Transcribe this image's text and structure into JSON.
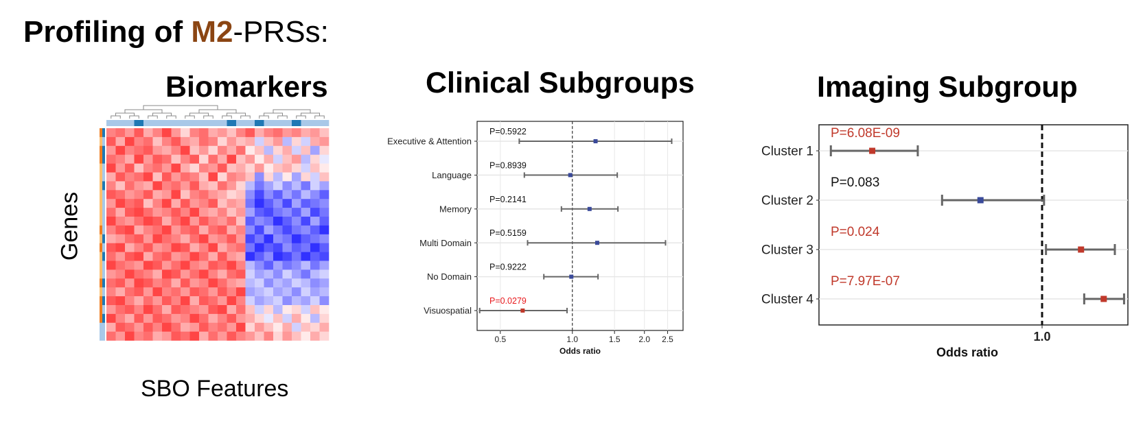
{
  "title": {
    "prefix": "Profiling of ",
    "highlight": "M2",
    "suffix": "-PRSs:",
    "highlight_color": "#8b4513"
  },
  "panels": {
    "biomarkers": {
      "title": "Biomarkers",
      "ylabel": "Genes",
      "xlabel": "SBO Features"
    },
    "clinical": {
      "title": "Clinical Subgroups"
    },
    "imaging": {
      "title": "Imaging Subgroup"
    }
  },
  "colors": {
    "significant": "#c0392b",
    "significant_text": "#e8181c",
    "nonsignificant": "#3a4a9a",
    "whisker": "#666666"
  },
  "chart_data": [
    {
      "type": "heatmap",
      "title": "Biomarkers",
      "xlabel": "SBO Features",
      "ylabel": "Genes",
      "rows": 24,
      "cols": 24,
      "color_scale": {
        "low": "#1a1aff",
        "mid": "#ffffff",
        "high": "#ff3030"
      },
      "col_annotation": [
        0,
        0,
        0,
        1,
        0,
        0,
        0,
        0,
        0,
        0,
        0,
        0,
        0,
        1,
        0,
        0,
        1,
        0,
        0,
        0,
        1,
        0,
        0,
        0
      ],
      "row_annotation": [
        1,
        0,
        1,
        1,
        0,
        0,
        1,
        0,
        0,
        0,
        0,
        0,
        1,
        0,
        1,
        0,
        0,
        1,
        0,
        1,
        0,
        1,
        0,
        0
      ],
      "annotation_colors": {
        "0": "#a8c8e8",
        "1": "#1f78b4"
      },
      "row_side_colors": [
        "#f07c1e",
        "#fdbf6f",
        "#f07c1e",
        "#f07c1e",
        "#fdbf6f",
        "#fdbf6f",
        "#fdbf6f",
        "#fdbf6f",
        "#fdbf6f",
        "#fdbf6f",
        "#fdbf6f",
        "#f07c1e",
        "#fdbf6f",
        "#f07c1e",
        "#fdbf6f",
        "#fdbf6f",
        "#fdbf6f",
        "#f07c1e",
        "#fdbf6f",
        "#f07c1e",
        "#f07c1e",
        "#f07c1e",
        "#a8c8e8",
        "#a8c8e8"
      ],
      "values": [
        [
          0.6,
          0.7,
          0.5,
          0.8,
          0.4,
          0.6,
          0.9,
          0.5,
          0.2,
          0.6,
          0.7,
          0.4,
          0.5,
          0.3,
          0.6,
          0.8,
          0.4,
          0.6,
          0.7,
          0.5,
          0.6,
          0.4,
          0.5,
          0.3
        ],
        [
          0.8,
          0.4,
          0.9,
          0.6,
          0.7,
          0.3,
          0.6,
          0.8,
          0.5,
          0.4,
          0.7,
          0.6,
          0.2,
          0.5,
          0.3,
          0.4,
          -0.2,
          0.3,
          0.5,
          -0.3,
          0.2,
          -0.2,
          0.4,
          0.5
        ],
        [
          0.5,
          0.9,
          0.6,
          0.7,
          0.8,
          0.5,
          0.4,
          0.6,
          0.9,
          0.3,
          0.5,
          0.2,
          0.6,
          0.4,
          0.7,
          0.1,
          0.3,
          -0.3,
          0.2,
          0.4,
          -0.2,
          0.3,
          -0.4,
          0.2
        ],
        [
          0.7,
          0.6,
          0.4,
          0.9,
          0.5,
          0.8,
          0.7,
          0.3,
          0.6,
          0.8,
          0.2,
          0.7,
          0.4,
          0.9,
          0.3,
          0.5,
          0.1,
          0.4,
          -0.2,
          0.3,
          0.5,
          -0.3,
          0.2,
          -0.1
        ],
        [
          0.9,
          0.5,
          0.8,
          0.3,
          0.6,
          0.7,
          0.5,
          0.9,
          0.4,
          0.2,
          0.6,
          0.5,
          0.8,
          0.3,
          0.4,
          0.2,
          0.5,
          0.1,
          0.3,
          0.4,
          0.2,
          -0.2,
          0.3,
          0.1
        ],
        [
          0.4,
          0.8,
          0.6,
          0.7,
          0.9,
          0.3,
          0.8,
          0.5,
          0.7,
          0.6,
          0.3,
          0.9,
          0.2,
          0.6,
          0.5,
          0.3,
          -0.5,
          0.2,
          -0.3,
          0.1,
          -0.4,
          0.2,
          -0.2,
          0.3
        ],
        [
          0.6,
          0.3,
          0.7,
          0.5,
          0.4,
          0.9,
          0.6,
          0.7,
          0.5,
          0.8,
          0.4,
          0.3,
          0.7,
          0.5,
          0.2,
          -0.3,
          -0.6,
          -0.4,
          -0.2,
          -0.5,
          -0.3,
          -0.6,
          -0.2,
          -0.4
        ],
        [
          0.8,
          0.7,
          0.5,
          0.6,
          0.8,
          0.4,
          0.5,
          0.9,
          0.3,
          0.6,
          0.7,
          0.5,
          0.4,
          0.2,
          0.3,
          -0.5,
          -0.8,
          -0.5,
          -0.7,
          -0.4,
          -0.6,
          -0.3,
          -0.5,
          -0.7
        ],
        [
          0.5,
          0.9,
          0.7,
          0.8,
          0.3,
          0.6,
          0.9,
          0.4,
          0.8,
          0.5,
          0.6,
          0.8,
          0.3,
          0.5,
          0.4,
          -0.6,
          -0.9,
          -0.7,
          -0.5,
          -0.8,
          -0.4,
          -0.7,
          -0.6,
          -0.5
        ],
        [
          0.7,
          0.4,
          0.8,
          0.9,
          0.7,
          0.5,
          0.6,
          0.8,
          0.6,
          0.9,
          0.5,
          0.4,
          0.6,
          0.3,
          0.5,
          -0.4,
          -0.7,
          -0.8,
          -0.6,
          -0.5,
          -0.7,
          -0.4,
          -0.8,
          -0.6
        ],
        [
          0.9,
          0.6,
          0.5,
          0.7,
          0.9,
          0.8,
          0.4,
          0.7,
          0.9,
          0.5,
          0.8,
          0.6,
          0.5,
          0.7,
          0.3,
          -0.7,
          -0.5,
          -0.6,
          -0.9,
          -0.7,
          -0.5,
          -0.8,
          -0.4,
          -0.7
        ],
        [
          0.6,
          0.8,
          0.9,
          0.4,
          0.6,
          0.7,
          0.9,
          0.5,
          0.7,
          0.8,
          0.4,
          0.7,
          0.8,
          0.4,
          0.6,
          -0.5,
          -0.8,
          -0.4,
          -0.6,
          -0.8,
          -0.6,
          -0.5,
          -0.7,
          -0.9
        ],
        [
          0.4,
          0.5,
          0.7,
          0.8,
          0.5,
          0.9,
          0.7,
          0.6,
          0.4,
          0.7,
          0.9,
          0.5,
          0.6,
          0.8,
          0.5,
          -0.8,
          -0.6,
          -0.9,
          -0.5,
          -0.6,
          -0.9,
          -0.7,
          -0.6,
          -0.5
        ],
        [
          0.8,
          0.9,
          0.4,
          0.6,
          0.8,
          0.5,
          0.6,
          0.9,
          0.8,
          0.4,
          0.6,
          0.9,
          0.4,
          0.6,
          0.7,
          -0.6,
          -0.9,
          -0.7,
          -0.8,
          -0.5,
          -0.7,
          -0.6,
          -0.9,
          -0.7
        ],
        [
          0.7,
          0.5,
          0.8,
          0.9,
          0.4,
          0.7,
          0.8,
          0.5,
          0.6,
          0.9,
          0.7,
          0.4,
          0.8,
          0.5,
          0.4,
          -0.9,
          -0.7,
          -0.5,
          -0.9,
          -0.8,
          -0.6,
          -0.9,
          -0.7,
          -0.8
        ],
        [
          0.9,
          0.7,
          0.6,
          0.5,
          0.9,
          0.8,
          0.5,
          0.7,
          0.9,
          0.6,
          0.5,
          0.8,
          0.7,
          0.9,
          0.6,
          -0.3,
          -0.5,
          -0.7,
          -0.4,
          -0.6,
          -0.5,
          -0.3,
          -0.6,
          -0.4
        ],
        [
          0.5,
          0.6,
          0.9,
          0.7,
          0.6,
          0.4,
          0.9,
          0.8,
          0.5,
          0.7,
          0.9,
          0.6,
          0.4,
          0.7,
          0.8,
          -0.2,
          -0.4,
          -0.3,
          -0.5,
          -0.2,
          -0.4,
          -0.6,
          -0.3,
          -0.2
        ],
        [
          0.7,
          0.8,
          0.5,
          0.9,
          0.8,
          0.6,
          0.7,
          0.4,
          0.8,
          0.5,
          0.6,
          0.9,
          0.7,
          0.5,
          0.4,
          -0.3,
          -0.2,
          -0.5,
          -0.3,
          -0.4,
          -0.2,
          -0.3,
          -0.5,
          -0.4
        ],
        [
          0.6,
          0.4,
          0.7,
          0.8,
          0.5,
          0.9,
          0.6,
          0.7,
          0.5,
          0.8,
          0.7,
          0.5,
          0.8,
          0.6,
          0.9,
          -0.4,
          -0.3,
          -0.2,
          -0.4,
          -0.3,
          -0.5,
          -0.2,
          -0.4,
          -0.3
        ],
        [
          0.8,
          0.9,
          0.6,
          0.4,
          0.7,
          0.5,
          0.8,
          0.6,
          0.9,
          0.4,
          0.8,
          0.7,
          0.5,
          0.9,
          0.6,
          -0.2,
          -0.4,
          -0.3,
          -0.2,
          -0.5,
          -0.3,
          -0.4,
          -0.2,
          -0.5
        ],
        [
          0.5,
          0.7,
          0.8,
          0.6,
          0.9,
          0.7,
          0.4,
          0.8,
          0.7,
          0.6,
          0.5,
          0.8,
          0.9,
          0.4,
          0.7,
          0.3,
          -0.2,
          0.2,
          -0.3,
          0.1,
          0.2,
          -0.2,
          0.3,
          0.1
        ],
        [
          0.9,
          0.6,
          0.4,
          0.8,
          0.5,
          0.8,
          0.7,
          0.5,
          0.6,
          0.9,
          0.7,
          0.4,
          0.6,
          0.8,
          0.5,
          0.4,
          0.2,
          -0.1,
          0.3,
          -0.2,
          0.4,
          0.1,
          -0.3,
          0.2
        ],
        [
          0.4,
          0.8,
          0.7,
          0.5,
          0.8,
          0.6,
          0.9,
          0.7,
          0.4,
          0.5,
          0.8,
          0.6,
          0.7,
          0.5,
          0.9,
          0.2,
          0.5,
          0.3,
          0.1,
          0.4,
          -0.2,
          0.3,
          0.2,
          0.4
        ],
        [
          0.7,
          0.5,
          0.9,
          0.6,
          0.7,
          0.4,
          0.5,
          0.8,
          0.7,
          0.9,
          0.4,
          0.7,
          0.5,
          0.8,
          0.6,
          0.5,
          0.3,
          0.6,
          0.2,
          0.5,
          0.3,
          0.1,
          0.4,
          0.2
        ]
      ]
    },
    {
      "type": "scatter",
      "subtype": "forest",
      "title": "Clinical Subgroups",
      "xlabel": "Odds ratio",
      "xscale": "log",
      "xlim": [
        0.4,
        2.9
      ],
      "xticks": [
        0.5,
        1.0,
        1.5,
        2.0,
        2.5
      ],
      "xtick_labels": [
        "0.5",
        "1.0",
        "1.5",
        "2.0",
        "2.5"
      ],
      "reference_line": 1.0,
      "grid": true,
      "rows": [
        {
          "label": "Executive & Attention",
          "p_label": "P=0.5922",
          "or": 1.25,
          "ci": [
            0.6,
            2.6
          ],
          "significant": false
        },
        {
          "label": "Language",
          "p_label": "P=0.8939",
          "or": 0.98,
          "ci": [
            0.63,
            1.54
          ],
          "significant": false
        },
        {
          "label": "Memory",
          "p_label": "P=0.2141",
          "or": 1.18,
          "ci": [
            0.9,
            1.55
          ],
          "significant": false
        },
        {
          "label": "Multi Domain",
          "p_label": "P=0.5159",
          "or": 1.27,
          "ci": [
            0.65,
            2.45
          ],
          "significant": false
        },
        {
          "label": "No Domain",
          "p_label": "P=0.9222",
          "or": 0.99,
          "ci": [
            0.76,
            1.28
          ],
          "significant": false
        },
        {
          "label": "Visuospatial",
          "p_label": "P=0.0279",
          "or": 0.62,
          "ci": [
            0.41,
            0.95
          ],
          "significant": true
        }
      ]
    },
    {
      "type": "scatter",
      "subtype": "forest",
      "title": "Imaging Subgroup",
      "xlabel": "Odds ratio",
      "xscale": "log",
      "xlim": [
        0.32,
        1.55
      ],
      "xticks": [
        1.0
      ],
      "xtick_labels": [
        "1.0"
      ],
      "reference_line": 1.0,
      "grid": true,
      "rows": [
        {
          "label": "Cluster 1",
          "p_label": "P=6.08E-09",
          "or": 0.42,
          "ci": [
            0.34,
            0.53
          ],
          "significant": true
        },
        {
          "label": "Cluster 2",
          "p_label": "P=0.083",
          "or": 0.73,
          "ci": [
            0.6,
            1.01
          ],
          "significant": false
        },
        {
          "label": "Cluster 3",
          "p_label": "P=0.024",
          "or": 1.22,
          "ci": [
            1.02,
            1.45
          ],
          "significant": true
        },
        {
          "label": "Cluster 4",
          "p_label": "P=7.97E-07",
          "or": 1.37,
          "ci": [
            1.24,
            1.52
          ],
          "significant": true
        }
      ]
    }
  ]
}
